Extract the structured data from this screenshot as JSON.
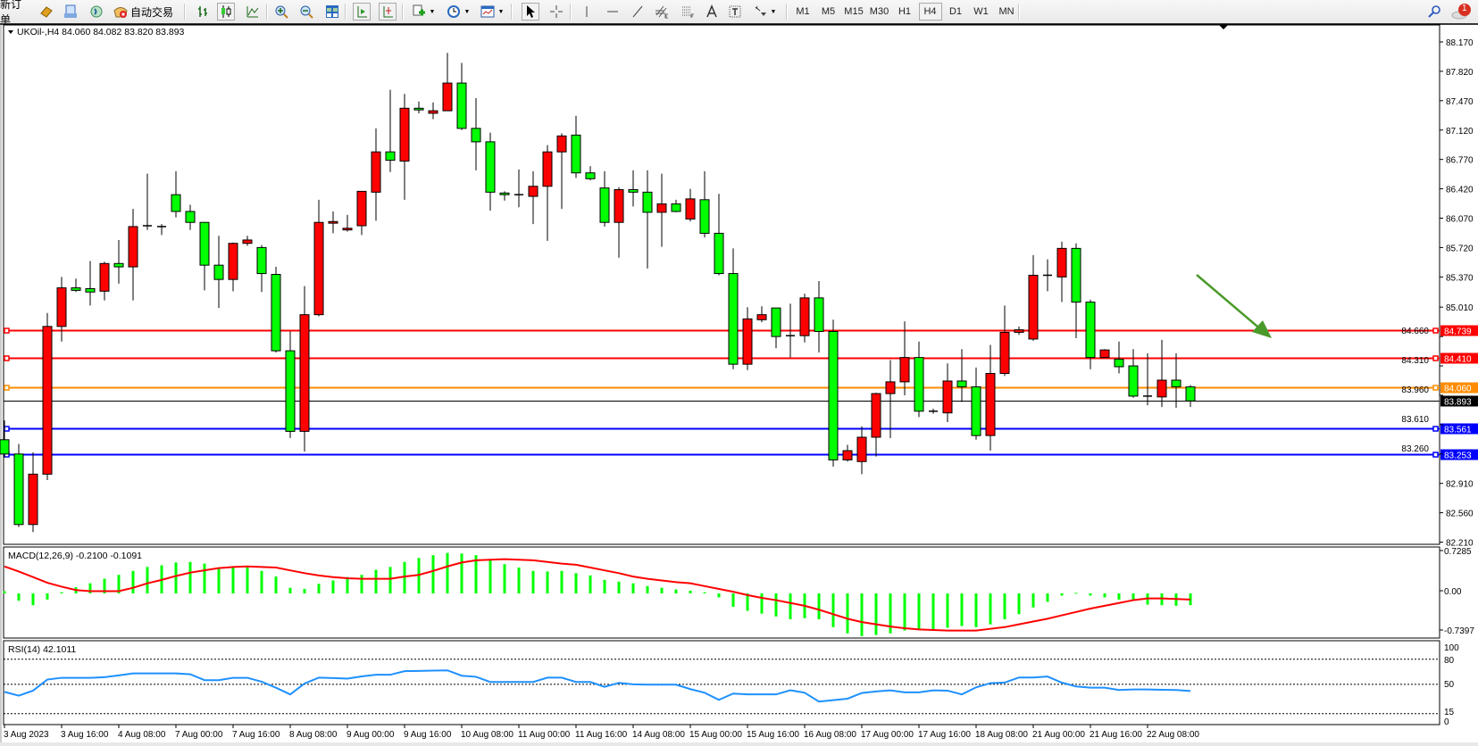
{
  "toolbar": {
    "new_order_label": "新订单",
    "auto_trading_label": "自动交易",
    "timeframes": [
      "M1",
      "M5",
      "M15",
      "M30",
      "H1",
      "H4",
      "D1",
      "W1",
      "MN"
    ],
    "active_timeframe": "H4",
    "notification_count": "1",
    "icons": [
      "market-watch-icon",
      "data-window-icon",
      "navigator-icon",
      "auto-trading-icon",
      "bar-chart-icon",
      "candlestick-icon",
      "line-chart-icon",
      "zoom-in-icon",
      "zoom-out-icon",
      "tile-windows-icon",
      "auto-scroll-icon",
      "chart-shift-icon",
      "indicators-icon",
      "periods-icon",
      "templates-icon",
      "cursor-icon",
      "crosshair-icon",
      "vertical-line-icon",
      "horizontal-line-icon",
      "trendline-icon",
      "fibonacci-channel-icon",
      "fibonacci-icon",
      "text-icon",
      "text-label-icon",
      "arrows-icon",
      "search-icon",
      "notification-icon"
    ]
  },
  "chart": {
    "header": "UKOil-,H4  84.060 84.082 83.820 83.893",
    "colors": {
      "bull": "#ff0000",
      "bear": "#00ff00",
      "wick": "#000000",
      "macd_hist": "#00ff00",
      "macd_signal": "#ff0000",
      "rsi": "#1e90ff"
    },
    "price_axis": [
      "88.170",
      "87.820",
      "87.470",
      "87.120",
      "86.770",
      "86.420",
      "86.070",
      "85.720",
      "85.370",
      "85.010",
      "84.660",
      "84.310",
      "83.960",
      "83.610",
      "83.260",
      "82.910",
      "82.560",
      "82.210"
    ],
    "levels": [
      {
        "price": "84.739",
        "color": "#ff0000"
      },
      {
        "price": "84.410",
        "color": "#ff0000"
      },
      {
        "price": "84.060",
        "color": "#ff8c00"
      },
      {
        "price": "83.893",
        "color": "#000000"
      },
      {
        "price": "83.561",
        "color": "#0000ff"
      },
      {
        "price": "83.253",
        "color": "#0000ff"
      }
    ],
    "arrow_color": "#4a9a2a",
    "time_labels": [
      "3 Aug 2023",
      "3 Aug 16:00",
      "4 Aug 08:00",
      "7 Aug 00:00",
      "7 Aug 16:00",
      "8 Aug 08:00",
      "9 Aug 00:00",
      "9 Aug 16:00",
      "10 Aug 08:00",
      "11 Aug 00:00",
      "11 Aug 16:00",
      "14 Aug 08:00",
      "15 Aug 00:00",
      "15 Aug 16:00",
      "16 Aug 08:00",
      "17 Aug 00:00",
      "17 Aug 16:00",
      "18 Aug 08:00",
      "21 Aug 00:00",
      "21 Aug 16:00",
      "22 Aug 08:00"
    ],
    "candles": [
      [
        83.43,
        83.66,
        83.22,
        83.26
      ],
      [
        83.26,
        83.38,
        82.39,
        82.42
      ],
      [
        82.42,
        83.28,
        82.33,
        83.02
      ],
      [
        83.02,
        84.94,
        82.95,
        84.78
      ],
      [
        84.78,
        85.37,
        84.6,
        85.24
      ],
      [
        85.24,
        85.35,
        85.19,
        85.21
      ],
      [
        85.23,
        85.56,
        85.03,
        85.19
      ],
      [
        85.2,
        85.55,
        85.09,
        85.53
      ],
      [
        85.53,
        85.81,
        85.29,
        85.49
      ],
      [
        85.49,
        86.18,
        85.09,
        85.97
      ],
      [
        85.98,
        86.6,
        85.93,
        85.98
      ],
      [
        85.97,
        86.0,
        85.87,
        85.97
      ],
      [
        86.35,
        86.63,
        86.08,
        86.15
      ],
      [
        86.15,
        86.23,
        85.93,
        86.02
      ],
      [
        86.02,
        86.02,
        85.21,
        85.51
      ],
      [
        85.51,
        85.86,
        85.0,
        85.34
      ],
      [
        85.34,
        85.78,
        85.2,
        85.77
      ],
      [
        85.77,
        85.86,
        85.74,
        85.81
      ],
      [
        85.72,
        85.75,
        85.19,
        85.41
      ],
      [
        85.4,
        85.49,
        84.47,
        84.49
      ],
      [
        84.49,
        84.72,
        83.45,
        83.53
      ],
      [
        83.53,
        85.26,
        83.29,
        84.92
      ],
      [
        84.92,
        86.29,
        84.9,
        86.02
      ],
      [
        86.01,
        86.15,
        85.89,
        86.03
      ],
      [
        85.93,
        86.11,
        85.91,
        85.95
      ],
      [
        85.98,
        86.39,
        85.87,
        86.39
      ],
      [
        86.38,
        87.14,
        86.04,
        86.86
      ],
      [
        86.86,
        87.6,
        86.62,
        86.76
      ],
      [
        86.75,
        87.55,
        86.29,
        87.38
      ],
      [
        87.38,
        87.46,
        87.32,
        87.36
      ],
      [
        87.32,
        87.45,
        87.25,
        87.35
      ],
      [
        87.35,
        88.04,
        87.35,
        87.68
      ],
      [
        87.68,
        87.92,
        87.12,
        87.14
      ],
      [
        87.14,
        87.5,
        86.64,
        86.98
      ],
      [
        86.98,
        87.09,
        86.16,
        86.38
      ],
      [
        86.37,
        86.39,
        86.28,
        86.35
      ],
      [
        86.35,
        86.65,
        86.2,
        86.35
      ],
      [
        86.33,
        86.63,
        86.0,
        86.45
      ],
      [
        86.45,
        86.94,
        85.8,
        86.86
      ],
      [
        86.86,
        87.08,
        86.18,
        87.05
      ],
      [
        87.06,
        87.29,
        86.55,
        86.61
      ],
      [
        86.61,
        86.69,
        86.52,
        86.54
      ],
      [
        86.43,
        86.63,
        85.97,
        86.02
      ],
      [
        86.02,
        86.44,
        85.6,
        86.41
      ],
      [
        86.41,
        86.64,
        86.21,
        86.38
      ],
      [
        86.38,
        86.64,
        85.47,
        86.14
      ],
      [
        86.14,
        86.6,
        85.73,
        86.24
      ],
      [
        86.24,
        86.29,
        86.14,
        86.15
      ],
      [
        86.06,
        86.42,
        86.03,
        86.3
      ],
      [
        86.29,
        86.63,
        85.84,
        85.89
      ],
      [
        85.89,
        86.36,
        85.39,
        85.41
      ],
      [
        85.41,
        85.71,
        84.27,
        84.33
      ],
      [
        84.33,
        85.01,
        84.26,
        84.87
      ],
      [
        84.86,
        85.02,
        84.83,
        84.92
      ],
      [
        85.0,
        85.0,
        84.52,
        84.66
      ],
      [
        84.67,
        85.05,
        84.41,
        84.67
      ],
      [
        84.67,
        85.17,
        84.59,
        85.12
      ],
      [
        85.12,
        85.32,
        84.47,
        84.72
      ],
      [
        84.72,
        84.86,
        83.11,
        83.19
      ],
      [
        83.19,
        83.37,
        83.17,
        83.3
      ],
      [
        83.17,
        83.59,
        83.02,
        83.46
      ],
      [
        83.46,
        83.99,
        83.23,
        83.98
      ],
      [
        83.98,
        84.38,
        83.45,
        84.12
      ],
      [
        84.12,
        84.84,
        83.96,
        84.41
      ],
      [
        84.41,
        84.6,
        83.7,
        83.77
      ],
      [
        83.77,
        83.8,
        83.74,
        83.77
      ],
      [
        83.75,
        84.34,
        83.64,
        84.13
      ],
      [
        84.13,
        84.51,
        83.88,
        84.06
      ],
      [
        84.06,
        84.29,
        83.43,
        83.48
      ],
      [
        83.48,
        84.56,
        83.3,
        84.22
      ],
      [
        84.22,
        85.03,
        84.19,
        84.71
      ],
      [
        84.71,
        84.78,
        84.68,
        84.74
      ],
      [
        84.63,
        85.63,
        84.61,
        85.39
      ],
      [
        85.39,
        85.58,
        85.2,
        85.39
      ],
      [
        85.37,
        85.79,
        85.07,
        85.71
      ],
      [
        85.71,
        85.77,
        84.64,
        85.07
      ],
      [
        85.07,
        85.1,
        84.27,
        84.41
      ],
      [
        84.41,
        84.51,
        84.41,
        84.5
      ],
      [
        84.39,
        84.6,
        84.22,
        84.3
      ],
      [
        84.31,
        84.51,
        83.93,
        83.95
      ],
      [
        83.95,
        84.46,
        83.84,
        83.95
      ],
      [
        83.94,
        84.62,
        83.82,
        84.14
      ],
      [
        84.14,
        84.46,
        83.81,
        84.06
      ],
      [
        84.06,
        84.082,
        83.82,
        83.893
      ]
    ],
    "macd": {
      "label": "MACD(12,26,9) -0.2100 -0.1091",
      "axis": [
        "0.7285",
        "0.00",
        "-0.7397"
      ],
      "histogram": [
        0.04,
        -0.13,
        -0.21,
        -0.11,
        0.02,
        0.11,
        0.18,
        0.26,
        0.33,
        0.4,
        0.47,
        0.5,
        0.55,
        0.56,
        0.53,
        0.45,
        0.47,
        0.47,
        0.4,
        0.3,
        0.1,
        0.08,
        0.17,
        0.23,
        0.29,
        0.33,
        0.42,
        0.47,
        0.56,
        0.63,
        0.68,
        0.72,
        0.71,
        0.68,
        0.6,
        0.52,
        0.46,
        0.4,
        0.39,
        0.4,
        0.36,
        0.32,
        0.24,
        0.21,
        0.18,
        0.13,
        0.1,
        0.07,
        0.05,
        0.02,
        -0.07,
        -0.24,
        -0.31,
        -0.36,
        -0.41,
        -0.46,
        -0.44,
        -0.46,
        -0.6,
        -0.71,
        -0.76,
        -0.74,
        -0.71,
        -0.66,
        -0.64,
        -0.65,
        -0.61,
        -0.58,
        -0.6,
        -0.55,
        -0.46,
        -0.37,
        -0.25,
        -0.15,
        -0.04,
        0.01,
        -0.04,
        -0.07,
        -0.11,
        -0.12,
        -0.2,
        -0.21,
        -0.22,
        -0.21
      ],
      "signal": [
        0.48,
        0.39,
        0.29,
        0.19,
        0.12,
        0.06,
        0.04,
        0.04,
        0.04,
        0.1,
        0.18,
        0.24,
        0.31,
        0.37,
        0.41,
        0.45,
        0.47,
        0.48,
        0.47,
        0.46,
        0.41,
        0.36,
        0.32,
        0.29,
        0.27,
        0.26,
        0.26,
        0.26,
        0.3,
        0.33,
        0.4,
        0.48,
        0.55,
        0.59,
        0.6,
        0.61,
        0.6,
        0.59,
        0.56,
        0.53,
        0.51,
        0.46,
        0.41,
        0.36,
        0.3,
        0.26,
        0.23,
        0.2,
        0.18,
        0.13,
        0.08,
        0.03,
        -0.03,
        -0.08,
        -0.12,
        -0.17,
        -0.22,
        -0.29,
        -0.37,
        -0.45,
        -0.51,
        -0.55,
        -0.59,
        -0.62,
        -0.64,
        -0.65,
        -0.66,
        -0.66,
        -0.66,
        -0.63,
        -0.6,
        -0.55,
        -0.5,
        -0.45,
        -0.39,
        -0.33,
        -0.27,
        -0.22,
        -0.17,
        -0.12,
        -0.09,
        -0.09,
        -0.1,
        -0.11
      ]
    },
    "rsi": {
      "label": "RSI(14) 42.1011",
      "axis": [
        "100",
        "80",
        "50",
        "15",
        "0"
      ],
      "levels": [
        80,
        50,
        15
      ],
      "values": [
        41,
        36.5,
        42.5,
        55.7,
        57.8,
        57.8,
        57.8,
        58.5,
        60.7,
        63,
        63,
        63,
        63,
        62,
        55,
        55,
        57.8,
        57.8,
        53.2,
        46,
        38,
        51,
        58,
        57.5,
        56.8,
        59.5,
        61.4,
        61.4,
        65.7,
        66,
        66.4,
        66.7,
        60.3,
        59,
        52.8,
        52.8,
        52.8,
        52.8,
        58,
        58,
        52.8,
        52.8,
        47,
        51.8,
        50,
        49.6,
        49.6,
        49.6,
        44.3,
        40,
        31.5,
        39,
        38,
        38,
        38,
        43,
        40,
        29.4,
        31.1,
        32.9,
        39.7,
        41.5,
        42.9,
        40.5,
        40.5,
        42.9,
        42.5,
        38,
        46.4,
        51.4,
        52.1,
        58.2,
        58.2,
        59.3,
        52,
        47.5,
        46,
        46,
        43.2,
        43.9,
        43.9,
        43.5,
        43.2,
        42.1
      ]
    }
  }
}
